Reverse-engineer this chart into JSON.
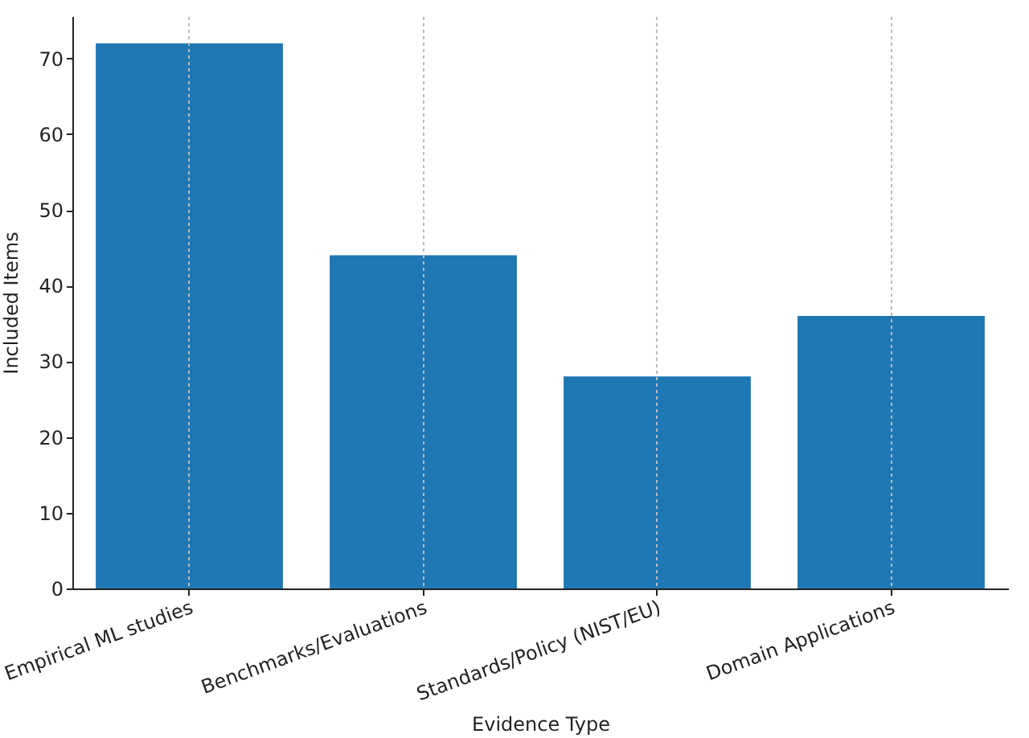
{
  "chart_data": {
    "type": "bar",
    "xlabel": "Evidence Type",
    "ylabel": "Included Items",
    "categories": [
      "Empirical ML studies",
      "Benchmarks/Evaluations",
      "Standards/Policy (NIST/EU)",
      "Domain Applications"
    ],
    "values": [
      72,
      44,
      28,
      36
    ],
    "color": "#1f77b4",
    "ylim": [
      0,
      75.6
    ],
    "yticks": [
      0,
      10,
      20,
      30,
      40,
      50,
      60,
      70
    ],
    "grid": "x"
  }
}
